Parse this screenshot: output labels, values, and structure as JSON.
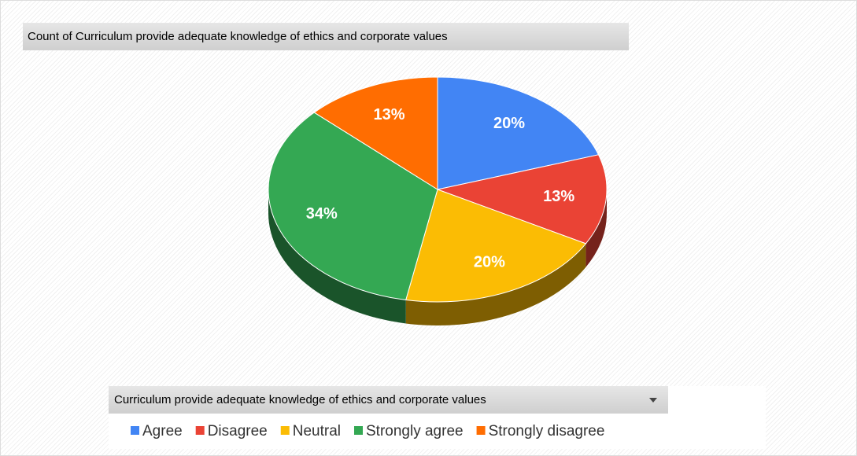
{
  "chart_data": {
    "type": "pie",
    "title": "Count of Curriculum provide adequate knowledge of ethics and corporate values",
    "legend_title": "Curriculum provide adequate knowledge of ethics and corporate values",
    "categories": [
      "Agree",
      "Disagree",
      "Neutral",
      "Strongly agree",
      "Strongly disagree"
    ],
    "values": [
      20,
      13,
      20,
      34,
      13
    ],
    "value_labels": [
      "20%",
      "13%",
      "20%",
      "34%",
      "13%"
    ],
    "colors": [
      "#4285f4",
      "#ea4335",
      "#fbbc04",
      "#34a853",
      "#ff6d01"
    ],
    "legend": "bottom"
  }
}
